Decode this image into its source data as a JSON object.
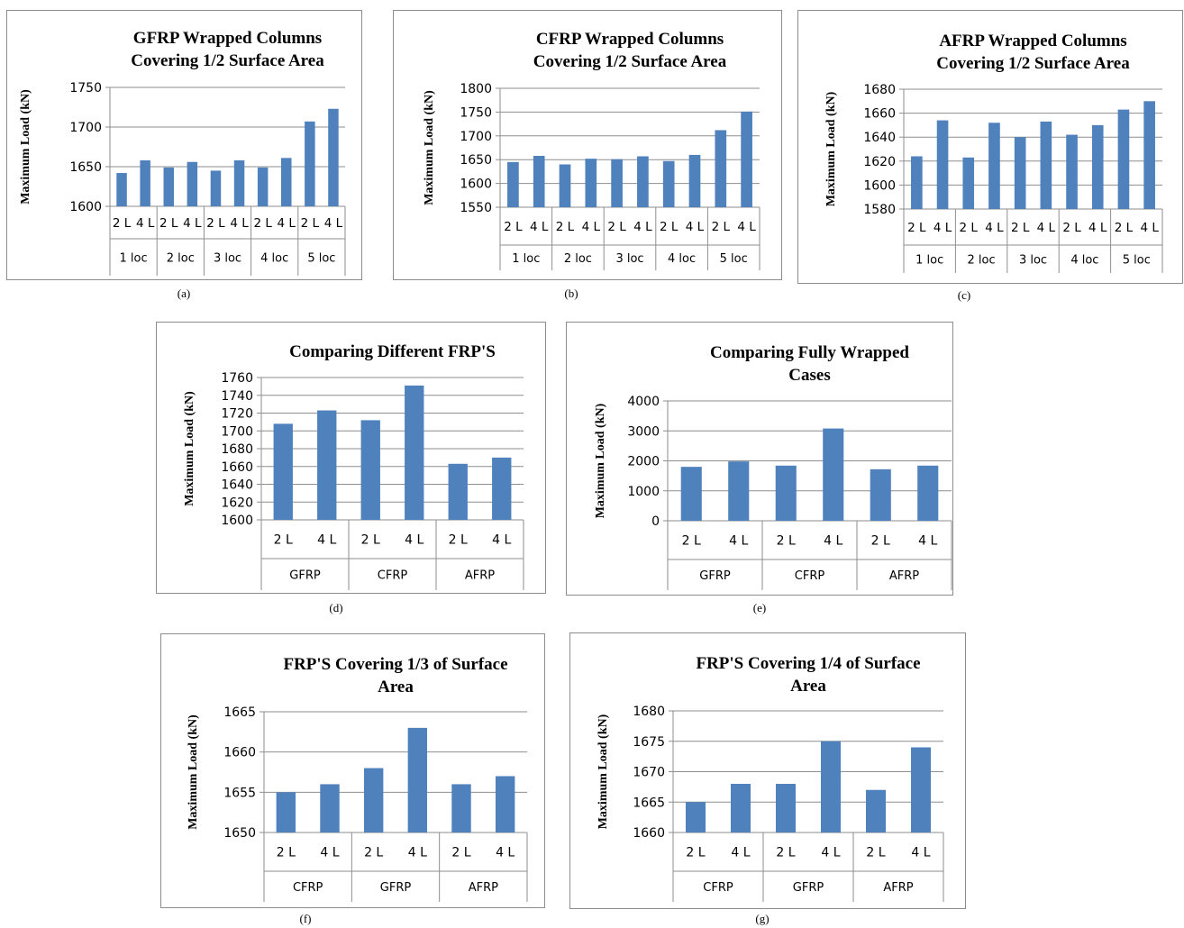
{
  "captions": [
    "(a)",
    "(b)",
    "(c)",
    "(d)",
    "(e)",
    "(f)",
    "(g)"
  ],
  "chart_data": [
    {
      "id": "a",
      "type": "bar",
      "title": [
        "GFRP Wrapped Columns",
        "Covering 1/2  Surface Area"
      ],
      "ylabel": "Maximum Load (kN)",
      "ylim": [
        1600,
        1750
      ],
      "yticks": [
        1600,
        1650,
        1700,
        1750
      ],
      "categories": [
        "2 L",
        "4 L",
        "2 L",
        "4 L",
        "2 L",
        "4 L",
        "2 L",
        "4 L",
        "2 L",
        "4 L"
      ],
      "groups": [
        "1 loc",
        "2 loc",
        "3 loc",
        "4 loc",
        "5 loc"
      ],
      "values": [
        1642,
        1658,
        1649,
        1656,
        1645,
        1658,
        1649,
        1661,
        1707,
        1723
      ],
      "color": "#4f81bd",
      "grid": true
    },
    {
      "id": "b",
      "type": "bar",
      "title": [
        "CFRP Wrapped Columns",
        "Covering 1/2  Surface Area"
      ],
      "ylabel": "Maximum Load (kN)",
      "ylim": [
        1550,
        1800
      ],
      "yticks": [
        1550,
        1600,
        1650,
        1700,
        1750,
        1800
      ],
      "categories": [
        "2 L",
        "4 L",
        "2 L",
        "4 L",
        "2 L",
        "4 L",
        "2 L",
        "4 L",
        "2 L",
        "4 L"
      ],
      "groups": [
        "1 loc",
        "2 loc",
        "3 loc",
        "4 loc",
        "5 loc"
      ],
      "values": [
        1645,
        1658,
        1640,
        1652,
        1651,
        1657,
        1647,
        1660,
        1712,
        1751
      ],
      "color": "#4f81bd",
      "grid": true
    },
    {
      "id": "c",
      "type": "bar",
      "title": [
        "AFRP Wrapped Columns",
        "Covering 1/2  Surface Area"
      ],
      "ylabel": "Maximum Load (kN)",
      "ylim": [
        1580,
        1680
      ],
      "yticks": [
        1580,
        1600,
        1620,
        1640,
        1660,
        1680
      ],
      "categories": [
        "2 L",
        "4 L",
        "2 L",
        "4 L",
        "2 L",
        "4 L",
        "2 L",
        "4 L",
        "2 L",
        "4 L"
      ],
      "groups": [
        "1 loc",
        "2 loc",
        "3 loc",
        "4 loc",
        "5 loc"
      ],
      "values": [
        1624,
        1654,
        1623,
        1652,
        1640,
        1653,
        1642,
        1650,
        1663,
        1670
      ],
      "color": "#4f81bd",
      "grid": true
    },
    {
      "id": "d",
      "type": "bar",
      "title": [
        "Comparing Different FRP'S"
      ],
      "ylabel": "Maximum Load (kN)",
      "ylim": [
        1600,
        1760
      ],
      "yticks": [
        1600,
        1620,
        1640,
        1660,
        1680,
        1700,
        1720,
        1740,
        1760
      ],
      "categories": [
        "2 L",
        "4 L",
        "2 L",
        "4 L",
        "2 L",
        "4 L"
      ],
      "groups": [
        "GFRP",
        "CFRP",
        "AFRP"
      ],
      "values": [
        1708,
        1723,
        1712,
        1751,
        1663,
        1670
      ],
      "color": "#4f81bd",
      "grid": true
    },
    {
      "id": "e",
      "type": "bar",
      "title": [
        "Comparing Fully Wrapped",
        "Cases"
      ],
      "ylabel": "Maximum Load (kN)",
      "ylim": [
        0,
        4000
      ],
      "yticks": [
        0,
        1000,
        2000,
        3000,
        4000
      ],
      "categories": [
        "2 L",
        "4 L",
        "2 L",
        "4 L",
        "2 L",
        "4 L"
      ],
      "groups": [
        "GFRP",
        "CFRP",
        "AFRP"
      ],
      "values": [
        1800,
        1980,
        1840,
        3080,
        1720,
        1840
      ],
      "color": "#4f81bd",
      "grid": true
    },
    {
      "id": "f",
      "type": "bar",
      "title": [
        "FRP'S Covering 1/3 of Surface",
        "Area"
      ],
      "ylabel": "Maximum Load (kN)",
      "ylim": [
        1650,
        1665
      ],
      "yticks": [
        1650,
        1655,
        1660,
        1665
      ],
      "categories": [
        "2 L",
        "4 L",
        "2 L",
        "4 L",
        "2 L",
        "4 L"
      ],
      "groups": [
        "CFRP",
        "GFRP",
        "AFRP"
      ],
      "values": [
        1655,
        1656,
        1658,
        1663,
        1656,
        1657
      ],
      "color": "#4f81bd",
      "grid": true
    },
    {
      "id": "g",
      "type": "bar",
      "title": [
        "FRP'S Covering 1/4 of Surface",
        "Area"
      ],
      "ylabel": "Maximum Load (kN)",
      "ylim": [
        1660,
        1680
      ],
      "yticks": [
        1660,
        1665,
        1670,
        1675,
        1680
      ],
      "categories": [
        "2 L",
        "4 L",
        "2 L",
        "4 L",
        "2 L",
        "4 L"
      ],
      "groups": [
        "CFRP",
        "GFRP",
        "AFRP"
      ],
      "values": [
        1665,
        1668,
        1668,
        1675,
        1667,
        1674
      ],
      "color": "#4f81bd",
      "grid": true
    }
  ]
}
